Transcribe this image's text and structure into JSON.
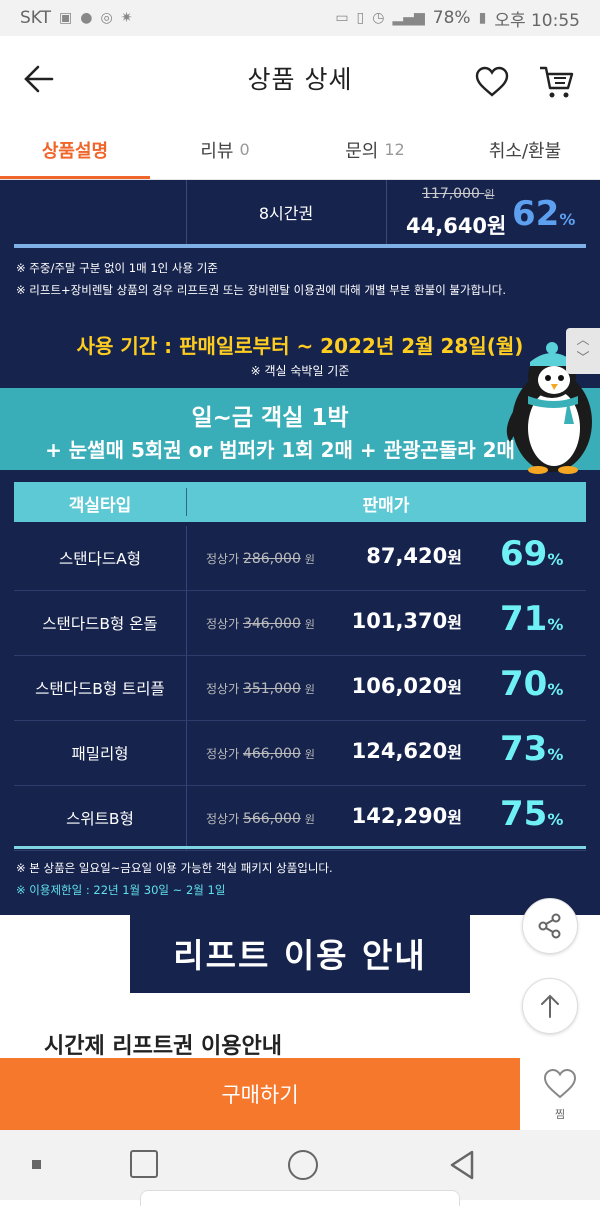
{
  "status_bar": {
    "carrier": "SKT",
    "battery": "78%",
    "time": "오후 10:55"
  },
  "header": {
    "title": "상품 상세",
    "icons": [
      "back-arrow-icon",
      "heart-icon",
      "cart-icon"
    ]
  },
  "tabs": [
    {
      "label": "상품설명",
      "count": ""
    },
    {
      "label": "리뷰",
      "count": "0"
    },
    {
      "label": "문의",
      "count": "12"
    },
    {
      "label": "취소/환불",
      "count": ""
    }
  ],
  "content": {
    "top_row": {
      "label": "8시간권",
      "original_price": "117,000",
      "original_unit": "원",
      "sale_price": "44,640원",
      "discount_num": "62",
      "discount_unit": "%"
    },
    "notes": [
      "※ 주중/주말 구분 없이 1매 1인 사용 기준",
      "※ 리프트+장비렌탈 상품의 경우 리프트권 또는 장비렌탈 이용권에 대해 개별 부분 환불이 불가합니다."
    ],
    "period": "사용 기간 :  판매일로부터 ~ 2022년 2월 28일(월)",
    "period_note": "※ 객실 숙박일 기준",
    "package_line1": "일~금 객실 1박",
    "package_line2": "+ 눈썰매 5회권 or 범퍼카 1회  2매 + 관광곤돌라 2매",
    "table_headers": [
      "객실타입",
      "판매가"
    ],
    "rows": [
      {
        "type": "스탠다드A형",
        "reg_label": "정상가",
        "reg_price": "286,000",
        "reg_unit": "원",
        "sale": "87,420",
        "sale_unit": "원",
        "pct": "69",
        "pct_unit": "%"
      },
      {
        "type": "스탠다드B형 온돌",
        "reg_label": "정상가",
        "reg_price": "346,000",
        "reg_unit": "원",
        "sale": "101,370",
        "sale_unit": "원",
        "pct": "71",
        "pct_unit": "%"
      },
      {
        "type": "스탠다드B형 트리플",
        "reg_label": "정상가",
        "reg_price": "351,000",
        "reg_unit": "원",
        "sale": "106,020",
        "sale_unit": "원",
        "pct": "70",
        "pct_unit": "%"
      },
      {
        "type": "패밀리형",
        "reg_label": "정상가",
        "reg_price": "466,000",
        "reg_unit": "원",
        "sale": "124,620",
        "sale_unit": "원",
        "pct": "73",
        "pct_unit": "%"
      },
      {
        "type": "스위트B형",
        "reg_label": "정상가",
        "reg_price": "566,000",
        "reg_unit": "원",
        "sale": "142,290",
        "sale_unit": "원",
        "pct": "75",
        "pct_unit": "%"
      }
    ],
    "note_bottom": "※ 본 상품은 일요일~금요일 이용 가능한 객실 패키지 상품입니다.",
    "note_restrict": "※ 이용제한일 : 22년 1월 30일 ~ 2월 1일",
    "banner": "리프트 이용 안내",
    "subheading": "시간제 리프트권 이용안내"
  },
  "bottom": {
    "buy_label": "구매하기",
    "wish_label": "찜"
  },
  "colors": {
    "accent": "#f0652a",
    "navy": "#16234d",
    "teal": "#3aaeb8",
    "yellow": "#ffcd1f",
    "cyan_pct": "#6ff0f5"
  }
}
